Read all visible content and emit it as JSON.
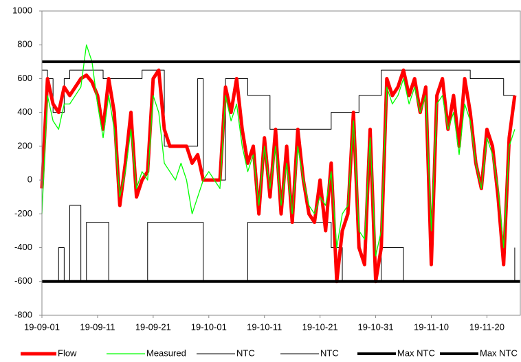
{
  "chart_data": {
    "type": "line",
    "x": [
      "19-09-01",
      "19-09-02",
      "19-09-03",
      "19-09-04",
      "19-09-05",
      "19-09-06",
      "19-09-07",
      "19-09-08",
      "19-09-09",
      "19-09-10",
      "19-09-11",
      "19-09-12",
      "19-09-13",
      "19-09-14",
      "19-09-15",
      "19-09-16",
      "19-09-17",
      "19-09-18",
      "19-09-19",
      "19-09-20",
      "19-09-21",
      "19-09-22",
      "19-09-23",
      "19-09-24",
      "19-09-25",
      "19-09-26",
      "19-09-27",
      "19-09-28",
      "19-09-29",
      "19-09-30",
      "19-10-01",
      "19-10-02",
      "19-10-03",
      "19-10-04",
      "19-10-05",
      "19-10-06",
      "19-10-07",
      "19-10-08",
      "19-10-09",
      "19-10-10",
      "19-10-11",
      "19-10-12",
      "19-10-13",
      "19-10-14",
      "19-10-15",
      "19-10-16",
      "19-10-17",
      "19-10-18",
      "19-10-19",
      "19-10-20",
      "19-10-21",
      "19-10-22",
      "19-10-23",
      "19-10-24",
      "19-10-25",
      "19-10-26",
      "19-10-27",
      "19-10-28",
      "19-10-29",
      "19-10-30",
      "19-10-31",
      "19-11-01",
      "19-11-02",
      "19-11-03",
      "19-11-04",
      "19-11-05",
      "19-11-06",
      "19-11-07",
      "19-11-08",
      "19-11-09",
      "19-11-10",
      "19-11-11",
      "19-11-12",
      "19-11-13",
      "19-11-14",
      "19-11-15",
      "19-11-16",
      "19-11-17",
      "19-11-18",
      "19-11-19",
      "19-11-20",
      "19-11-21",
      "19-11-22",
      "19-11-23",
      "19-11-24",
      "19-11-25"
    ],
    "series": [
      {
        "name": "Flow",
        "color": "#ff0000",
        "width": 5,
        "values": [
          -50,
          600,
          450,
          400,
          550,
          500,
          550,
          600,
          620,
          580,
          500,
          300,
          600,
          400,
          -150,
          100,
          400,
          -100,
          0,
          50,
          600,
          650,
          300,
          200,
          200,
          200,
          200,
          100,
          150,
          0,
          0,
          0,
          0,
          550,
          400,
          600,
          300,
          100,
          200,
          -200,
          250,
          -100,
          300,
          -200,
          200,
          -250,
          300,
          0,
          -200,
          -250,
          0,
          -300,
          100,
          -600,
          -300,
          -200,
          400,
          -400,
          -500,
          300,
          -600,
          -400,
          600,
          500,
          550,
          650,
          500,
          600,
          400,
          550,
          -500,
          500,
          600,
          300,
          500,
          200,
          600,
          400,
          100,
          -50,
          300,
          200,
          -100,
          -500,
          250,
          500
        ]
      },
      {
        "name": "Measured",
        "color": "#00ff00",
        "width": 1.3,
        "values": [
          -200,
          500,
          350,
          300,
          450,
          450,
          500,
          550,
          800,
          700,
          450,
          250,
          500,
          300,
          -100,
          50,
          300,
          -50,
          50,
          0,
          500,
          400,
          100,
          50,
          0,
          100,
          0,
          -200,
          -100,
          0,
          50,
          0,
          -50,
          500,
          350,
          450,
          200,
          50,
          150,
          -150,
          200,
          -50,
          200,
          -150,
          100,
          -200,
          200,
          0,
          -150,
          -200,
          -100,
          -150,
          50,
          -400,
          -200,
          -150,
          350,
          -300,
          -350,
          250,
          -450,
          -300,
          550,
          450,
          500,
          600,
          450,
          550,
          400,
          500,
          -300,
          450,
          500,
          300,
          400,
          150,
          450,
          350,
          100,
          -50,
          250,
          150,
          -50,
          -400,
          200,
          300
        ]
      },
      {
        "name": "NTC",
        "color": "#000000",
        "width": 1,
        "step": true,
        "values": [
          650,
          600,
          400,
          400,
          600,
          650,
          650,
          650,
          650,
          650,
          650,
          600,
          600,
          600,
          600,
          600,
          600,
          600,
          650,
          650,
          650,
          650,
          200,
          200,
          200,
          200,
          200,
          200,
          600,
          0,
          0,
          0,
          0,
          600,
          600,
          600,
          600,
          500,
          500,
          500,
          500,
          300,
          300,
          300,
          300,
          300,
          300,
          300,
          300,
          300,
          300,
          300,
          400,
          400,
          400,
          400,
          400,
          500,
          500,
          500,
          500,
          650,
          650,
          650,
          650,
          650,
          650,
          650,
          650,
          650,
          650,
          650,
          650,
          650,
          650,
          650,
          650,
          600,
          600,
          600,
          600,
          600,
          600,
          500,
          500,
          500
        ]
      },
      {
        "name": "NTC",
        "color": "#000000",
        "width": 1,
        "step": true,
        "values": [
          -600,
          -600,
          -600,
          -400,
          -600,
          -150,
          -150,
          -600,
          -250,
          -250,
          -250,
          -250,
          -600,
          -600,
          -600,
          -600,
          -600,
          -600,
          -600,
          -250,
          -250,
          -250,
          -250,
          -250,
          -250,
          -250,
          -250,
          -250,
          -250,
          -600,
          -600,
          -600,
          -600,
          -600,
          -600,
          -600,
          -600,
          -250,
          -250,
          -250,
          -250,
          -250,
          -250,
          -250,
          -250,
          -250,
          -250,
          -250,
          -250,
          -250,
          -250,
          -250,
          -400,
          -400,
          -600,
          -600,
          -600,
          -600,
          -600,
          -600,
          -600,
          -400,
          -400,
          -400,
          -400,
          -600,
          -600,
          -600,
          -600,
          -600,
          -600,
          -600,
          -600,
          -600,
          -600,
          -600,
          -600,
          -600,
          -600,
          -600,
          -600,
          -600,
          -600,
          -600,
          -600,
          -400
        ]
      },
      {
        "name": "Max NTC",
        "color": "#000000",
        "width": 4,
        "x": [
          "19-09-01",
          "19-11-26"
        ],
        "values": [
          700,
          700
        ]
      },
      {
        "name": "Max NTC",
        "color": "#000000",
        "width": 4,
        "x": [
          "19-09-01",
          "19-11-26"
        ],
        "values": [
          -600,
          -600
        ]
      }
    ],
    "xlim": [
      "19-09-01",
      "19-11-26"
    ],
    "xticks": [
      "19-09-01",
      "19-09-11",
      "19-09-21",
      "19-10-01",
      "19-10-11",
      "19-10-21",
      "19-10-31",
      "19-11-10",
      "19-11-20"
    ],
    "ylim": [
      -800,
      1000
    ],
    "yticks": [
      -800,
      -600,
      -400,
      -200,
      0,
      200,
      400,
      600,
      800,
      1000
    ],
    "legend": "bottom"
  }
}
